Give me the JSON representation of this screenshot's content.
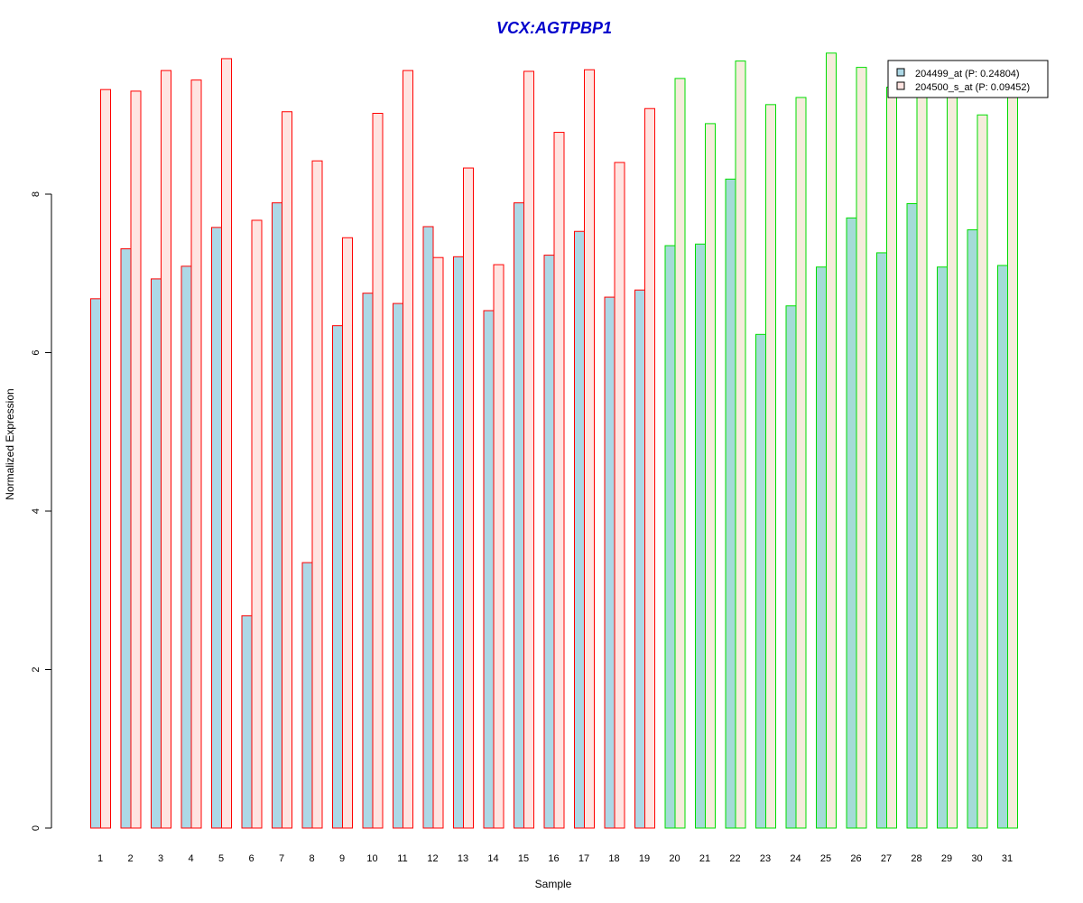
{
  "chart_data": {
    "type": "bar",
    "title": "VCX:AGTPBP1",
    "xlabel": "Sample",
    "ylabel": "Normalized Expression",
    "ylim": [
      0,
      9.8
    ],
    "yticks": [
      0,
      2,
      4,
      6,
      8
    ],
    "grid": false,
    "legend_position": "top-right",
    "categories": [
      "1",
      "2",
      "3",
      "4",
      "5",
      "6",
      "7",
      "8",
      "9",
      "10",
      "11",
      "12",
      "13",
      "14",
      "15",
      "16",
      "17",
      "18",
      "19",
      "20",
      "21",
      "22",
      "23",
      "24",
      "25",
      "26",
      "27",
      "28",
      "29",
      "30",
      "31"
    ],
    "group_border_colors": [
      "#ff0000",
      "#ff0000",
      "#ff0000",
      "#ff0000",
      "#ff0000",
      "#ff0000",
      "#ff0000",
      "#ff0000",
      "#ff0000",
      "#ff0000",
      "#ff0000",
      "#ff0000",
      "#ff0000",
      "#ff0000",
      "#ff0000",
      "#ff0000",
      "#ff0000",
      "#ff0000",
      "#ff0000",
      "#00dd00",
      "#00dd00",
      "#00dd00",
      "#00dd00",
      "#00dd00",
      "#00dd00",
      "#00dd00",
      "#00dd00",
      "#00dd00",
      "#00dd00",
      "#00dd00",
      "#00dd00"
    ],
    "series": [
      {
        "name": "204499_at (P: 0.24804)",
        "fill_red_group": "#add8e6",
        "fill_green_group": "#a4dbd7",
        "values": [
          6.68,
          7.31,
          6.93,
          7.09,
          7.58,
          2.68,
          7.89,
          3.35,
          6.34,
          6.75,
          6.62,
          7.59,
          7.21,
          6.53,
          7.89,
          7.23,
          7.53,
          6.7,
          6.79,
          7.35,
          7.37,
          8.19,
          6.23,
          6.59,
          7.08,
          7.7,
          7.26,
          7.88,
          7.08,
          7.55,
          7.1
        ]
      },
      {
        "name": "204500_s_at (P: 0.09452)",
        "fill_red_group": "#ffe4e1",
        "fill_green_group": "#f5ecdc",
        "values": [
          9.32,
          9.3,
          9.56,
          9.44,
          9.71,
          7.67,
          9.04,
          8.42,
          7.45,
          9.02,
          9.56,
          7.2,
          8.33,
          7.11,
          9.55,
          8.78,
          9.57,
          8.4,
          9.08,
          9.46,
          8.89,
          9.68,
          9.13,
          9.22,
          9.78,
          9.6,
          9.35,
          9.3,
          9.3,
          9.0,
          9.3
        ]
      }
    ]
  }
}
